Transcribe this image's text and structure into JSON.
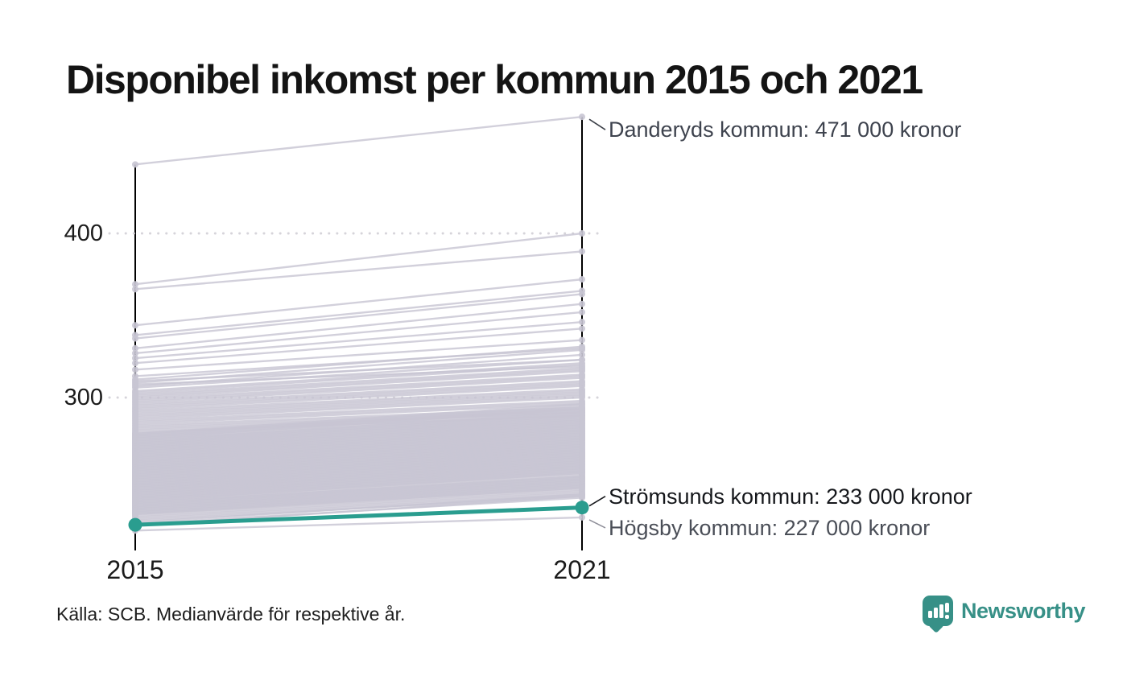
{
  "title": "Disponibel inkomst per kommun 2015 och 2021",
  "footer": {
    "source": "Källa: SCB. Medianvärde för respektive år."
  },
  "branding": {
    "name": "Newsworthy"
  },
  "colors": {
    "background": "#ffffff",
    "line_default": "#c8c5d3",
    "line_highlight": "#2a9d8f",
    "axis": "#000000",
    "gridline": "#d6d4da",
    "brand_teal": "#379087",
    "annotation_dark": "#15171b",
    "annotation_gray": "#3e434e"
  },
  "chart_data": {
    "type": "line",
    "variant": "slopegraph",
    "title": "Disponibel inkomst per kommun 2015 och 2021",
    "x_labels": [
      "2015",
      "2021"
    ],
    "y_ticks": [
      400,
      300
    ],
    "y_unit": "tusen kronor",
    "grid": "dotted horizontal at ticks",
    "annotations": [
      {
        "id": "danderyd",
        "text": "Danderyds kommun: 471 000 kronor",
        "anchor_year": "2021",
        "anchor_value": 471
      },
      {
        "id": "stromsund",
        "text": "Strömsunds kommun: 233 000 kronor",
        "anchor_year": "2021",
        "anchor_value": 233
      },
      {
        "id": "hogsby",
        "text": "Högsby kommun: 227 000 kronor",
        "anchor_year": "2021",
        "anchor_value": 227
      }
    ],
    "highlight_series": {
      "name": "Strömsunds kommun",
      "values": [
        222.5,
        233
      ]
    },
    "named_series": [
      {
        "name": "Danderyds kommun",
        "values": [
          442,
          471
        ]
      },
      {
        "name": "Högsby kommun",
        "values": [
          219,
          227
        ]
      }
    ],
    "background_series": [
      [
        369,
        400
      ],
      [
        366,
        389
      ],
      [
        344,
        372
      ],
      [
        338,
        365
      ],
      [
        336,
        363
      ],
      [
        330,
        357
      ],
      [
        327,
        352
      ],
      [
        324,
        346
      ],
      [
        321,
        342
      ],
      [
        317,
        335
      ],
      [
        313,
        330
      ],
      [
        310,
        323
      ],
      [
        308,
        319
      ],
      [
        311,
        331
      ],
      [
        309,
        329
      ],
      [
        307,
        326
      ],
      [
        306,
        323
      ],
      [
        304,
        321
      ],
      [
        303,
        320
      ],
      [
        302,
        318
      ],
      [
        301,
        317
      ],
      [
        300,
        316
      ],
      [
        299,
        314
      ],
      [
        298,
        313
      ],
      [
        297,
        312
      ],
      [
        296,
        310
      ],
      [
        295,
        309
      ],
      [
        294,
        308
      ],
      [
        293,
        307
      ],
      [
        292,
        305
      ],
      [
        291,
        304
      ],
      [
        290,
        303
      ],
      [
        289,
        302
      ],
      [
        288,
        301
      ],
      [
        287,
        300
      ],
      [
        286,
        298
      ],
      [
        285,
        297
      ],
      [
        284,
        296
      ],
      [
        283,
        294
      ],
      [
        282,
        293
      ],
      [
        281,
        292
      ],
      [
        280,
        291
      ],
      [
        279,
        289
      ],
      [
        278,
        296
      ],
      [
        278,
        293
      ],
      [
        277,
        295
      ],
      [
        277,
        292
      ],
      [
        276,
        294
      ],
      [
        276,
        291
      ],
      [
        275,
        293
      ],
      [
        275,
        290
      ],
      [
        274,
        291
      ],
      [
        274,
        289
      ],
      [
        273,
        290
      ],
      [
        273,
        288
      ],
      [
        272,
        289
      ],
      [
        272,
        287
      ],
      [
        271,
        288
      ],
      [
        271,
        286
      ],
      [
        270,
        287
      ],
      [
        270,
        285
      ],
      [
        269,
        286
      ],
      [
        269,
        284
      ],
      [
        268,
        285
      ],
      [
        268,
        283
      ],
      [
        267,
        284
      ],
      [
        267,
        282
      ],
      [
        266,
        283
      ],
      [
        266,
        281
      ],
      [
        265,
        282
      ],
      [
        265,
        280
      ],
      [
        264,
        281
      ],
      [
        264,
        279
      ],
      [
        263,
        280
      ],
      [
        263,
        278
      ],
      [
        262,
        279
      ],
      [
        262,
        277
      ],
      [
        261,
        278
      ],
      [
        261,
        276
      ],
      [
        260,
        277
      ],
      [
        260,
        275
      ],
      [
        259,
        276
      ],
      [
        259,
        274
      ],
      [
        258,
        275
      ],
      [
        258,
        273
      ],
      [
        257,
        274
      ],
      [
        257,
        272
      ],
      [
        256,
        273
      ],
      [
        256,
        271
      ],
      [
        255,
        272
      ],
      [
        255,
        270
      ],
      [
        254,
        271
      ],
      [
        254,
        269
      ],
      [
        253,
        270
      ],
      [
        253,
        268
      ],
      [
        252,
        269
      ],
      [
        252,
        267
      ],
      [
        251,
        268
      ],
      [
        251,
        266
      ],
      [
        250,
        267
      ],
      [
        250,
        265
      ],
      [
        249,
        266
      ],
      [
        249,
        264
      ],
      [
        248,
        265
      ],
      [
        248,
        263
      ],
      [
        247,
        264
      ],
      [
        247,
        262
      ],
      [
        246,
        263
      ],
      [
        246,
        261
      ],
      [
        245,
        262
      ],
      [
        245,
        260
      ],
      [
        244,
        261
      ],
      [
        244,
        259
      ],
      [
        243,
        260
      ],
      [
        243,
        258
      ],
      [
        242,
        259
      ],
      [
        242,
        257
      ],
      [
        241,
        258
      ],
      [
        241,
        256
      ],
      [
        240,
        257
      ],
      [
        240,
        255
      ],
      [
        239,
        256
      ],
      [
        239,
        254
      ],
      [
        238,
        255
      ],
      [
        238,
        253
      ],
      [
        237,
        254
      ],
      [
        237,
        252
      ],
      [
        236,
        252
      ],
      [
        236,
        251
      ],
      [
        235,
        251
      ],
      [
        235,
        250
      ],
      [
        234,
        250
      ],
      [
        234,
        249
      ],
      [
        233,
        249
      ],
      [
        233,
        248
      ],
      [
        232,
        248
      ],
      [
        232,
        247
      ],
      [
        231,
        247
      ],
      [
        231,
        246
      ],
      [
        230,
        246
      ],
      [
        230,
        245
      ],
      [
        229,
        245
      ],
      [
        229,
        244
      ],
      [
        228,
        243
      ],
      [
        227,
        242
      ],
      [
        226,
        241
      ],
      [
        225,
        240
      ],
      [
        224,
        241
      ],
      [
        223,
        239
      ],
      [
        222,
        240
      ]
    ]
  }
}
